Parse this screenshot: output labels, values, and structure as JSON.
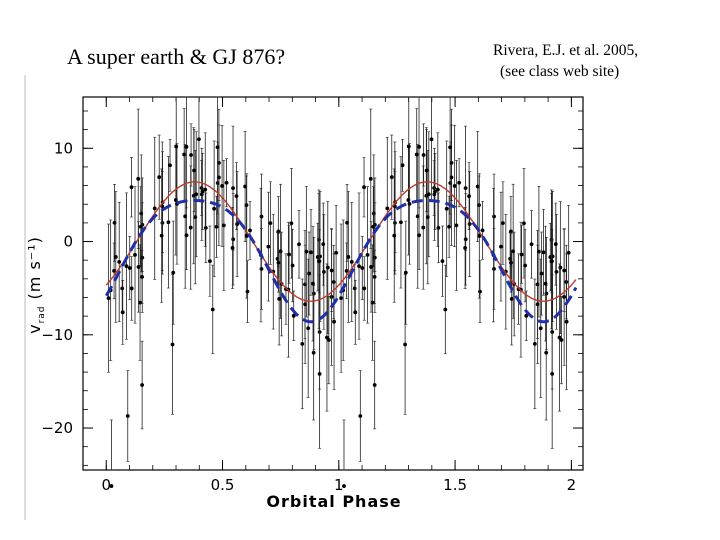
{
  "slide": {
    "title": "A super earth & GJ 876?",
    "citation_line1": "Rivera, E.J. et al. 2005,",
    "citation_line2": "(see class web site)"
  },
  "chart_data": {
    "type": "scatter",
    "xlabel": "Orbital Phase",
    "ylabel_main": "v",
    "ylabel_sub": "rad",
    "ylabel_units": "(m s⁻¹)",
    "xlim": [
      -0.1,
      2.05
    ],
    "ylim": [
      -24.5,
      15.5
    ],
    "x_ticks": [
      0,
      0.5,
      1,
      1.5,
      2
    ],
    "x_tick_labels": [
      "0",
      "0.5",
      "1",
      "1.5",
      "2"
    ],
    "y_ticks": [
      10,
      0,
      -10,
      -20
    ],
    "y_tick_labels": [
      "10",
      "0",
      "−10",
      "−20"
    ],
    "series": [
      {
        "style": "red-solid-curve",
        "color": "#c0392b",
        "amplitude": 6.4,
        "offset": 0.0,
        "peak_phase": 0.38
      },
      {
        "style": "blue-dashed-curve",
        "color": "#1f2fa8",
        "amplitude": 6.5,
        "offset": -1.0,
        "peak_phase": 0.38,
        "harmonic_amplitude": 1.1
      }
    ],
    "points_note_count": 120
  }
}
